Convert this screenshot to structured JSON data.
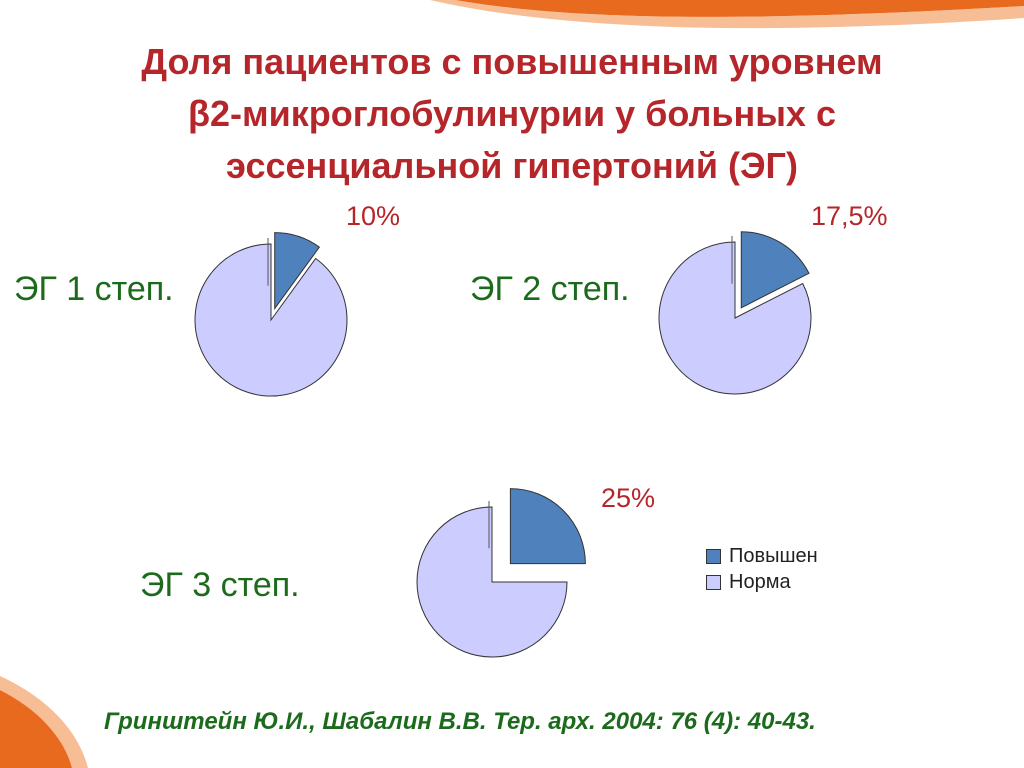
{
  "title_lines": [
    "Доля пациентов с повышенным уровнем",
    "β2-микроглобулинурии у больных с",
    "эссенциальной гипертоний (ЭГ)"
  ],
  "legend": {
    "items": [
      "Повышен",
      "Норма"
    ]
  },
  "colors": {
    "elevated": "#4f81bd",
    "normal": "#ccccff",
    "title": "#b5262a",
    "group_label": "#1c6b1c",
    "accent_orange": "#e86a1f"
  },
  "source": "Гринштейн Ю.И., Шабалин В.В. Тер. арх. 2004: 76 (4): 40-43.",
  "chart_data": [
    {
      "type": "pie",
      "group": "ЭГ 1 степ.",
      "categories": [
        "Повышен",
        "Норма"
      ],
      "values": [
        10,
        90
      ],
      "label": "10%"
    },
    {
      "type": "pie",
      "group": "ЭГ 2 степ.",
      "categories": [
        "Повышен",
        "Норма"
      ],
      "values": [
        17.5,
        82.5
      ],
      "label": "17,5%"
    },
    {
      "type": "pie",
      "group": "ЭГ 3 степ.",
      "categories": [
        "Повышен",
        "Норма"
      ],
      "values": [
        25,
        75
      ],
      "label": "25%"
    }
  ]
}
